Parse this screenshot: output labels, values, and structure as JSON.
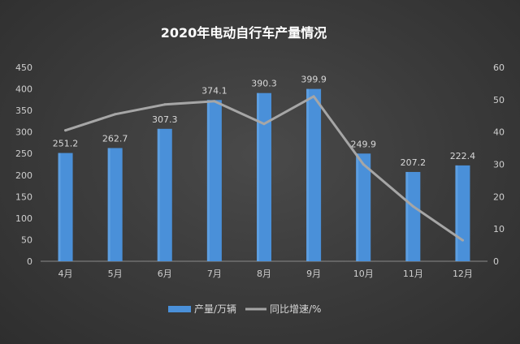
{
  "chart_data": {
    "type": "bar",
    "title": "2020年电动自行车产量情况",
    "categories": [
      "4月",
      "5月",
      "6月",
      "7月",
      "8月",
      "9月",
      "10月",
      "11月",
      "12月"
    ],
    "series": [
      {
        "name": "产量/万辆",
        "type": "bar",
        "axis": "left",
        "color": "#4a90d9",
        "values": [
          251.2,
          262.7,
          307.3,
          374.1,
          390.3,
          399.9,
          249.9,
          207.2,
          222.4
        ],
        "labels": [
          "251.2",
          "262.7",
          "307.3",
          "374.1",
          "390.3",
          "399.9",
          "249.9",
          "207.2",
          "222.4"
        ]
      },
      {
        "name": "同比增速/%",
        "type": "line",
        "axis": "right",
        "color": "#a6a6a6",
        "values": [
          40.5,
          45.5,
          48.5,
          49.5,
          42.5,
          51.0,
          30.0,
          17.0,
          6.5
        ]
      }
    ],
    "ylim_left": [
      0,
      450
    ],
    "yticks_left": [
      0,
      50,
      100,
      150,
      200,
      250,
      300,
      350,
      400,
      450
    ],
    "ylim_right": [
      0,
      60
    ],
    "yticks_right": [
      0,
      10,
      20,
      30,
      40,
      50,
      60
    ],
    "grid": false,
    "legend_position": "bottom"
  }
}
